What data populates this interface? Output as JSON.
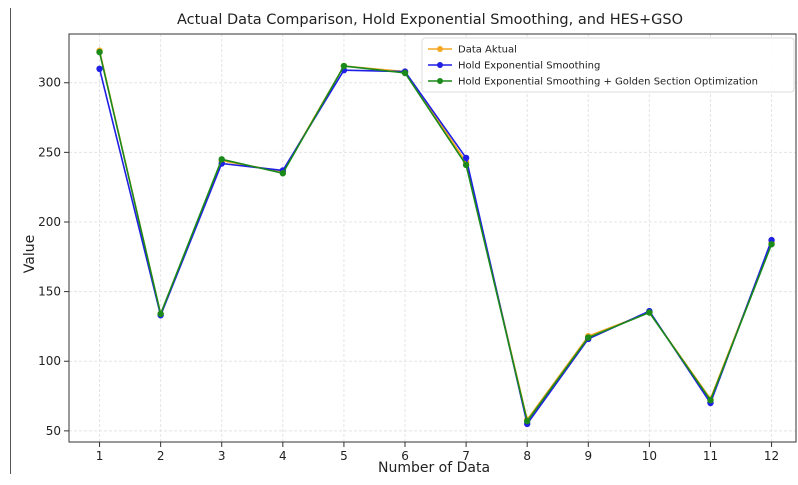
{
  "chart_data": {
    "type": "line",
    "title": "Actual Data Comparison, Hold Exponential Smoothing, and HES+GSO",
    "xlabel": "Number of Data",
    "ylabel": "Value",
    "x": [
      1,
      2,
      3,
      4,
      5,
      6,
      7,
      8,
      9,
      10,
      11,
      12
    ],
    "xlim": [
      0.5,
      12.4
    ],
    "ylim": [
      42,
      335
    ],
    "yticks": [
      50,
      100,
      150,
      200,
      250,
      300
    ],
    "grid": true,
    "legend_position": "top-right",
    "series": [
      {
        "name": "Data Aktual",
        "color": "#f5a623",
        "values": [
          323,
          134,
          244,
          236,
          312,
          308,
          243,
          58,
          118,
          135,
          73,
          185
        ]
      },
      {
        "name": "Hold Exponential Smoothing",
        "color": "#1f1fe6",
        "values": [
          310,
          133,
          242,
          237,
          309,
          308,
          246,
          55,
          116,
          136,
          70,
          187
        ]
      },
      {
        "name": "Hold Exponential Smoothing + Golden Section Optimization",
        "color": "#1a8a1a",
        "values": [
          322,
          134,
          245,
          235,
          312,
          307,
          241,
          57,
          117,
          135,
          72,
          184
        ]
      }
    ]
  }
}
